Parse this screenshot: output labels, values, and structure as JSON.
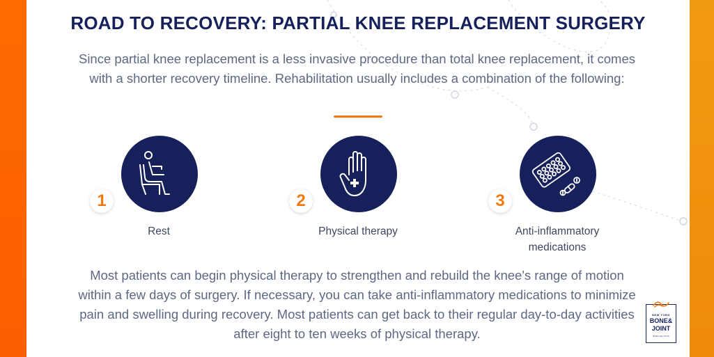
{
  "colors": {
    "navy": "#16215c",
    "orange": "#f07a10",
    "left_bar": "#ff6a00",
    "right_bar": "#f39a14",
    "body_text": "#5d6882"
  },
  "title": "ROAD TO RECOVERY: PARTIAL KNEE REPLACEMENT SURGERY",
  "intro": "Since partial knee replacement is a less invasive procedure than total knee replacement, it comes with a shorter recovery timeline. Rehabilitation usually includes a combination of the following:",
  "steps": [
    {
      "number": "1",
      "label": "Rest",
      "icon": "person-sitting-icon"
    },
    {
      "number": "2",
      "label": "Physical therapy",
      "icon": "hand-with-cross-icon"
    },
    {
      "number": "3",
      "label": "Anti-inflammatory medications",
      "icon": "pill-blister-icon"
    }
  ],
  "body": "Most patients can begin physical therapy to strengthen and rebuild the knee's range of motion within a few days of surgery. If necessary, you can take anti-inflammatory medications to minimize pain and swelling during recovery. Most patients can get back to their regular day-to-day activities after eight to ten weeks of physical therapy.",
  "logo": {
    "line1": "NEW YORK",
    "line2": "BONE&",
    "line3": "JOINT",
    "line4": "SPECIALISTS"
  }
}
